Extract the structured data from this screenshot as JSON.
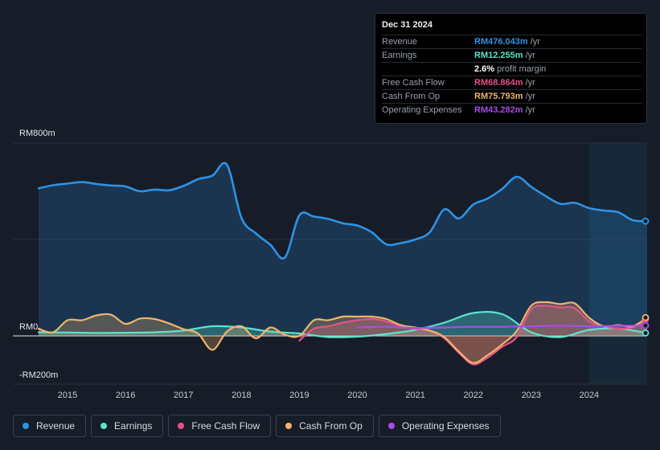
{
  "tooltip": {
    "date": "Dec 31 2024",
    "rows": [
      {
        "label": "Revenue",
        "value": "RM476.043m",
        "unit": "/yr",
        "color": "#2e93e5"
      },
      {
        "label": "Earnings",
        "value": "RM12.255m",
        "unit": "/yr",
        "color": "#5de3cb"
      },
      {
        "label": "",
        "value": "2.6%",
        "unit": "profit margin",
        "color": "#ffffff"
      },
      {
        "label": "Free Cash Flow",
        "value": "RM68.864m",
        "unit": "/yr",
        "color": "#e4528a"
      },
      {
        "label": "Cash From Op",
        "value": "RM75.793m",
        "unit": "/yr",
        "color": "#f0b46b"
      },
      {
        "label": "Operating Expenses",
        "value": "RM43.282m",
        "unit": "/yr",
        "color": "#a74de6"
      }
    ]
  },
  "legend": [
    {
      "label": "Revenue",
      "color": "#2e93e5"
    },
    {
      "label": "Earnings",
      "color": "#5de3cb"
    },
    {
      "label": "Free Cash Flow",
      "color": "#e4528a"
    },
    {
      "label": "Cash From Op",
      "color": "#f0b46b"
    },
    {
      "label": "Operating Expenses",
      "color": "#a74de6"
    }
  ],
  "chart_data": {
    "type": "area",
    "title": "",
    "xlabel": "",
    "ylabel": "",
    "currency": "RM",
    "unit": "m",
    "ylim": [
      -200,
      800
    ],
    "yticks": [
      {
        "value": 800,
        "label": "RM800m"
      },
      {
        "value": 0,
        "label": "RM0"
      },
      {
        "value": -200,
        "label": "-RM200m"
      }
    ],
    "xlim": [
      2014.5,
      2025.0
    ],
    "xticks": [
      {
        "value": 2015,
        "label": "2015"
      },
      {
        "value": 2016,
        "label": "2016"
      },
      {
        "value": 2017,
        "label": "2017"
      },
      {
        "value": 2018,
        "label": "2018"
      },
      {
        "value": 2019,
        "label": "2019"
      },
      {
        "value": 2020,
        "label": "2020"
      },
      {
        "value": 2021,
        "label": "2021"
      },
      {
        "value": 2022,
        "label": "2022"
      },
      {
        "value": 2023,
        "label": "2023"
      },
      {
        "value": 2024,
        "label": "2024"
      }
    ],
    "highlight_from": 2024.0,
    "series": [
      {
        "name": "Revenue",
        "color": "#2e93e5",
        "fill": true,
        "points": [
          [
            2014.5,
            612
          ],
          [
            2014.75,
            625
          ],
          [
            2015.0,
            632
          ],
          [
            2015.25,
            638
          ],
          [
            2015.5,
            630
          ],
          [
            2015.75,
            624
          ],
          [
            2016.0,
            620
          ],
          [
            2016.25,
            600
          ],
          [
            2016.5,
            607
          ],
          [
            2016.75,
            604
          ],
          [
            2017.0,
            622
          ],
          [
            2017.25,
            650
          ],
          [
            2017.5,
            665
          ],
          [
            2017.75,
            710
          ],
          [
            2018.0,
            490
          ],
          [
            2018.25,
            425
          ],
          [
            2018.5,
            378
          ],
          [
            2018.75,
            325
          ],
          [
            2019.0,
            500
          ],
          [
            2019.25,
            495
          ],
          [
            2019.5,
            485
          ],
          [
            2019.75,
            467
          ],
          [
            2020.0,
            458
          ],
          [
            2020.25,
            430
          ],
          [
            2020.5,
            380
          ],
          [
            2020.75,
            385
          ],
          [
            2021.0,
            400
          ],
          [
            2021.25,
            430
          ],
          [
            2021.5,
            525
          ],
          [
            2021.75,
            487
          ],
          [
            2022.0,
            545
          ],
          [
            2022.25,
            570
          ],
          [
            2022.5,
            610
          ],
          [
            2022.75,
            660
          ],
          [
            2023.0,
            618
          ],
          [
            2023.25,
            580
          ],
          [
            2023.5,
            548
          ],
          [
            2023.75,
            552
          ],
          [
            2024.0,
            530
          ],
          [
            2024.25,
            520
          ],
          [
            2024.5,
            513
          ],
          [
            2024.75,
            480
          ],
          [
            2025.0,
            476
          ]
        ]
      },
      {
        "name": "Earnings",
        "color": "#5de3cb",
        "fill": true,
        "points": [
          [
            2014.5,
            15
          ],
          [
            2015.0,
            14
          ],
          [
            2015.5,
            12
          ],
          [
            2016.0,
            13
          ],
          [
            2016.5,
            15
          ],
          [
            2017.0,
            22
          ],
          [
            2017.5,
            40
          ],
          [
            2018.0,
            35
          ],
          [
            2018.5,
            18
          ],
          [
            2019.0,
            10
          ],
          [
            2019.5,
            -5
          ],
          [
            2020.0,
            -3
          ],
          [
            2020.5,
            8
          ],
          [
            2021.0,
            25
          ],
          [
            2021.5,
            55
          ],
          [
            2022.0,
            95
          ],
          [
            2022.5,
            90
          ],
          [
            2023.0,
            15
          ],
          [
            2023.5,
            -5
          ],
          [
            2024.0,
            25
          ],
          [
            2024.5,
            30
          ],
          [
            2025.0,
            12
          ]
        ]
      },
      {
        "name": "Free Cash Flow",
        "color": "#e4528a",
        "fill": true,
        "points": [
          [
            2019.0,
            -20
          ],
          [
            2019.25,
            30
          ],
          [
            2019.5,
            40
          ],
          [
            2019.75,
            55
          ],
          [
            2020.0,
            65
          ],
          [
            2020.25,
            70
          ],
          [
            2020.5,
            60
          ],
          [
            2020.75,
            40
          ],
          [
            2021.0,
            30
          ],
          [
            2021.25,
            20
          ],
          [
            2021.5,
            -10
          ],
          [
            2021.75,
            -70
          ],
          [
            2022.0,
            -118
          ],
          [
            2022.25,
            -90
          ],
          [
            2022.5,
            -45
          ],
          [
            2022.75,
            -5
          ],
          [
            2023.0,
            110
          ],
          [
            2023.25,
            125
          ],
          [
            2023.5,
            118
          ],
          [
            2023.75,
            115
          ],
          [
            2024.0,
            60
          ],
          [
            2024.25,
            40
          ],
          [
            2024.5,
            30
          ],
          [
            2024.75,
            35
          ],
          [
            2025.0,
            69
          ]
        ]
      },
      {
        "name": "Cash From Op",
        "color": "#f0b46b",
        "fill": true,
        "points": [
          [
            2014.5,
            30
          ],
          [
            2014.75,
            15
          ],
          [
            2015.0,
            65
          ],
          [
            2015.25,
            65
          ],
          [
            2015.5,
            85
          ],
          [
            2015.75,
            88
          ],
          [
            2016.0,
            50
          ],
          [
            2016.25,
            72
          ],
          [
            2016.5,
            70
          ],
          [
            2016.75,
            52
          ],
          [
            2017.0,
            28
          ],
          [
            2017.25,
            10
          ],
          [
            2017.5,
            -58
          ],
          [
            2017.75,
            18
          ],
          [
            2018.0,
            40
          ],
          [
            2018.25,
            -10
          ],
          [
            2018.5,
            35
          ],
          [
            2018.75,
            5
          ],
          [
            2019.0,
            0
          ],
          [
            2019.25,
            65
          ],
          [
            2019.5,
            65
          ],
          [
            2019.75,
            80
          ],
          [
            2020.0,
            80
          ],
          [
            2020.25,
            80
          ],
          [
            2020.5,
            70
          ],
          [
            2020.75,
            45
          ],
          [
            2021.0,
            35
          ],
          [
            2021.25,
            22
          ],
          [
            2021.5,
            -5
          ],
          [
            2021.75,
            -65
          ],
          [
            2022.0,
            -112
          ],
          [
            2022.25,
            -80
          ],
          [
            2022.5,
            -35
          ],
          [
            2022.75,
            20
          ],
          [
            2023.0,
            125
          ],
          [
            2023.25,
            140
          ],
          [
            2023.5,
            132
          ],
          [
            2023.75,
            135
          ],
          [
            2024.0,
            75
          ],
          [
            2024.25,
            40
          ],
          [
            2024.5,
            45
          ],
          [
            2024.75,
            40
          ],
          [
            2025.0,
            76
          ]
        ]
      },
      {
        "name": "Operating Expenses",
        "color": "#a74de6",
        "fill": false,
        "points": [
          [
            2020.0,
            35
          ],
          [
            2020.5,
            38
          ],
          [
            2021.0,
            33
          ],
          [
            2021.5,
            35
          ],
          [
            2022.0,
            38
          ],
          [
            2022.5,
            38
          ],
          [
            2023.0,
            40
          ],
          [
            2023.5,
            42
          ],
          [
            2024.0,
            40
          ],
          [
            2024.5,
            42
          ],
          [
            2025.0,
            43
          ]
        ]
      }
    ]
  }
}
